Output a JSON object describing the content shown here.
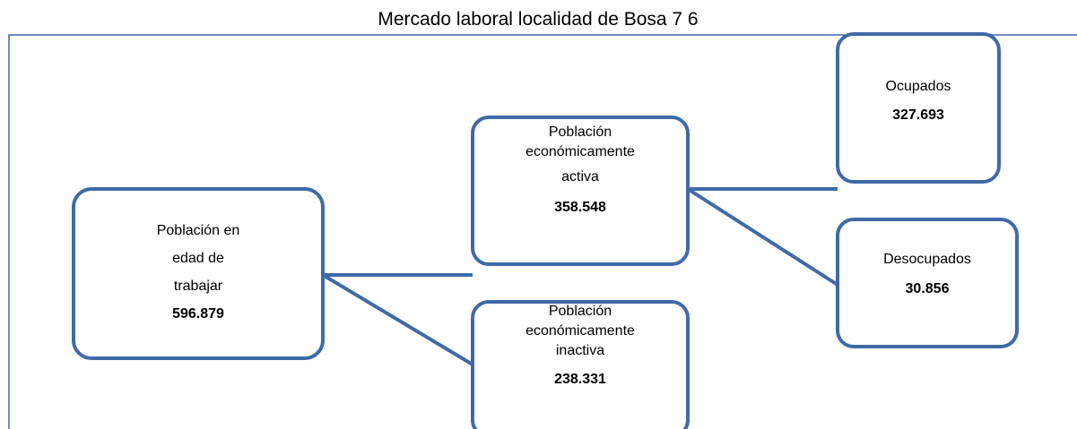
{
  "title": "Mercado laboral localidad de Bosa 7 6",
  "nodes": [
    {
      "label": [
        "Población en",
        "edad de",
        "trabajar"
      ],
      "value": "596.879"
    },
    {
      "label": [
        "Población",
        "económicamente",
        "activa"
      ],
      "value": "358.548"
    },
    {
      "label": [
        "Población",
        "económicamente",
        "inactiva"
      ],
      "value": "238.331"
    },
    {
      "label": [
        "Ocupados"
      ],
      "value": "327.693"
    },
    {
      "label": [
        "Desocupados"
      ],
      "value": "30.856"
    }
  ]
}
